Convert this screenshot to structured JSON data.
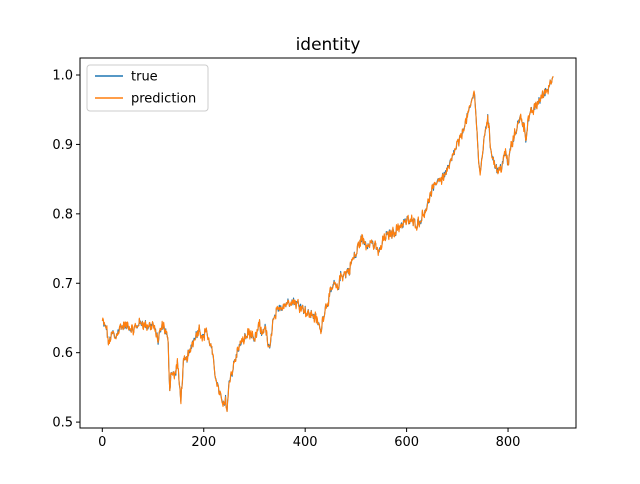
{
  "chart_data": {
    "type": "line",
    "title": "identity",
    "xlabel": "",
    "ylabel": "",
    "xlim": [
      -44,
      934
    ],
    "ylim": [
      0.4915,
      1.0245
    ],
    "x_ticks": [
      0,
      200,
      400,
      600,
      800
    ],
    "x_tick_labels": [
      "0",
      "200",
      "400",
      "600",
      "800"
    ],
    "y_ticks": [
      0.5,
      0.6,
      0.7,
      0.8,
      0.9,
      1.0
    ],
    "y_tick_labels": [
      "0.5",
      "0.6",
      "0.7",
      "0.8",
      "0.9",
      "1.0"
    ],
    "grid": false,
    "legend_position": "top-left",
    "x_count": 890,
    "anchors": [
      [
        0,
        0.645
      ],
      [
        8,
        0.635
      ],
      [
        13,
        0.612
      ],
      [
        20,
        0.63
      ],
      [
        25,
        0.62
      ],
      [
        35,
        0.637
      ],
      [
        50,
        0.64
      ],
      [
        60,
        0.632
      ],
      [
        75,
        0.644
      ],
      [
        88,
        0.638
      ],
      [
        100,
        0.64
      ],
      [
        110,
        0.618
      ],
      [
        118,
        0.64
      ],
      [
        125,
        0.632
      ],
      [
        130,
        0.612
      ],
      [
        133,
        0.545
      ],
      [
        136,
        0.575
      ],
      [
        142,
        0.565
      ],
      [
        148,
        0.585
      ],
      [
        152,
        0.555
      ],
      [
        155,
        0.532
      ],
      [
        160,
        0.585
      ],
      [
        165,
        0.59
      ],
      [
        172,
        0.6
      ],
      [
        178,
        0.615
      ],
      [
        186,
        0.628
      ],
      [
        192,
        0.635
      ],
      [
        198,
        0.62
      ],
      [
        205,
        0.635
      ],
      [
        210,
        0.615
      ],
      [
        215,
        0.61
      ],
      [
        220,
        0.58
      ],
      [
        225,
        0.56
      ],
      [
        230,
        0.545
      ],
      [
        236,
        0.53
      ],
      [
        240,
        0.52
      ],
      [
        243,
        0.535
      ],
      [
        246,
        0.515
      ],
      [
        250,
        0.56
      ],
      [
        255,
        0.57
      ],
      [
        262,
        0.59
      ],
      [
        270,
        0.61
      ],
      [
        280,
        0.62
      ],
      [
        290,
        0.63
      ],
      [
        300,
        0.615
      ],
      [
        305,
        0.63
      ],
      [
        310,
        0.64
      ],
      [
        315,
        0.625
      ],
      [
        320,
        0.64
      ],
      [
        325,
        0.62
      ],
      [
        330,
        0.6
      ],
      [
        335,
        0.64
      ],
      [
        342,
        0.655
      ],
      [
        350,
        0.665
      ],
      [
        360,
        0.67
      ],
      [
        375,
        0.675
      ],
      [
        385,
        0.67
      ],
      [
        395,
        0.665
      ],
      [
        405,
        0.655
      ],
      [
        415,
        0.655
      ],
      [
        425,
        0.645
      ],
      [
        430,
        0.63
      ],
      [
        438,
        0.66
      ],
      [
        445,
        0.675
      ],
      [
        452,
        0.69
      ],
      [
        458,
        0.7
      ],
      [
        463,
        0.69
      ],
      [
        470,
        0.71
      ],
      [
        480,
        0.715
      ],
      [
        488,
        0.72
      ],
      [
        493,
        0.735
      ],
      [
        500,
        0.74
      ],
      [
        505,
        0.755
      ],
      [
        512,
        0.765
      ],
      [
        520,
        0.755
      ],
      [
        530,
        0.76
      ],
      [
        540,
        0.75
      ],
      [
        547,
        0.745
      ],
      [
        555,
        0.765
      ],
      [
        565,
        0.77
      ],
      [
        578,
        0.775
      ],
      [
        590,
        0.785
      ],
      [
        600,
        0.79
      ],
      [
        610,
        0.79
      ],
      [
        620,
        0.785
      ],
      [
        627,
        0.79
      ],
      [
        633,
        0.8
      ],
      [
        640,
        0.81
      ],
      [
        648,
        0.83
      ],
      [
        655,
        0.84
      ],
      [
        662,
        0.85
      ],
      [
        670,
        0.85
      ],
      [
        678,
        0.86
      ],
      [
        685,
        0.87
      ],
      [
        692,
        0.885
      ],
      [
        700,
        0.9
      ],
      [
        707,
        0.91
      ],
      [
        715,
        0.93
      ],
      [
        722,
        0.945
      ],
      [
        728,
        0.96
      ],
      [
        732,
        0.975
      ],
      [
        735,
        0.965
      ],
      [
        738,
        0.93
      ],
      [
        742,
        0.875
      ],
      [
        745,
        0.855
      ],
      [
        750,
        0.89
      ],
      [
        755,
        0.92
      ],
      [
        760,
        0.94
      ],
      [
        765,
        0.9
      ],
      [
        770,
        0.88
      ],
      [
        775,
        0.87
      ],
      [
        780,
        0.86
      ],
      [
        785,
        0.865
      ],
      [
        790,
        0.875
      ],
      [
        795,
        0.89
      ],
      [
        800,
        0.87
      ],
      [
        805,
        0.895
      ],
      [
        810,
        0.905
      ],
      [
        815,
        0.92
      ],
      [
        820,
        0.93
      ],
      [
        825,
        0.94
      ],
      [
        830,
        0.93
      ],
      [
        835,
        0.91
      ],
      [
        840,
        0.935
      ],
      [
        845,
        0.945
      ],
      [
        850,
        0.95
      ],
      [
        855,
        0.955
      ],
      [
        860,
        0.962
      ],
      [
        865,
        0.967
      ],
      [
        870,
        0.972
      ],
      [
        875,
        0.977
      ],
      [
        880,
        0.982
      ],
      [
        885,
        0.993
      ],
      [
        889,
        1.002
      ]
    ],
    "series": [
      {
        "name": "true",
        "color": "#1f77b4"
      },
      {
        "name": "prediction",
        "color": "#ff7f0e"
      }
    ]
  }
}
